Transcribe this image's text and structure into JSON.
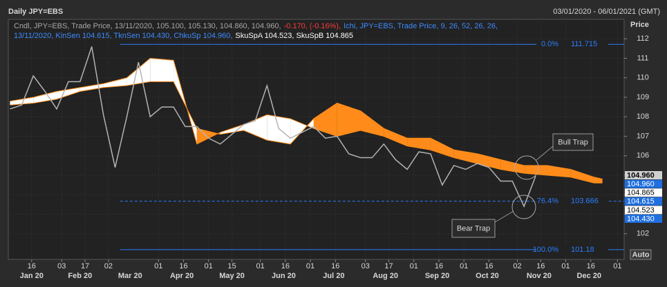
{
  "chart_data": {
    "type": "line",
    "title": "Daily JPY=EBS",
    "date_range": "03/01/2020 - 06/01/2021 (GMT)",
    "y_axis_label": "Price",
    "scale_button": "Auto",
    "legend_lines": [
      [
        {
          "text": "Cndl, JPY=EBS, Trade Price, 13/11/2020, 105.100, 105.130, 104.860, 104.960,",
          "color": "#a8a8a8"
        },
        {
          "text": "-0.170, (-0.16%),",
          "color": "#ff3b3b"
        },
        {
          "text": "Ichi, JPY=EBS, Trade Price,  9, 26, 52, 26, 26,",
          "color": "#3d8bff"
        }
      ],
      [
        {
          "text": "13/11/2020, KinSen 104.615, TknSen 104.430, ChkuSp 104.960,",
          "color": "#3d8bff"
        },
        {
          "text": "SkuSpA 104.523, SkuSpB 104.865",
          "color": "#ffffff"
        }
      ]
    ],
    "xlim": [
      "2020-01-02",
      "2021-01-05"
    ],
    "ylim": [
      100.68,
      113.0
    ],
    "yticks": [
      102,
      103,
      104,
      105,
      106,
      107,
      108,
      109,
      110,
      111,
      112
    ],
    "xticks": [
      {
        "value": "2020-01-16",
        "label": "16"
      },
      {
        "value": "2020-02-03",
        "label": "03"
      },
      {
        "value": "2020-02-17",
        "label": "17"
      },
      {
        "value": "2020-03-02",
        "label": "02"
      },
      {
        "value": "2020-04-01",
        "label": "01"
      },
      {
        "value": "2020-04-16",
        "label": "16"
      },
      {
        "value": "2020-05-01",
        "label": "01"
      },
      {
        "value": "2020-05-15",
        "label": "15"
      },
      {
        "value": "2020-06-01",
        "label": "01"
      },
      {
        "value": "2020-06-16",
        "label": "16"
      },
      {
        "value": "2020-07-01",
        "label": "01"
      },
      {
        "value": "2020-07-16",
        "label": "16"
      },
      {
        "value": "2020-08-03",
        "label": "03"
      },
      {
        "value": "2020-08-17",
        "label": "17"
      },
      {
        "value": "2020-09-01",
        "label": "01"
      },
      {
        "value": "2020-09-16",
        "label": "16"
      },
      {
        "value": "2020-10-01",
        "label": "01"
      },
      {
        "value": "2020-10-16",
        "label": "16"
      },
      {
        "value": "2020-11-02",
        "label": "02"
      },
      {
        "value": "2020-11-16",
        "label": "16"
      },
      {
        "value": "2020-12-01",
        "label": "01"
      },
      {
        "value": "2020-12-16",
        "label": "16"
      },
      {
        "value": "2021-01-01",
        "label": "01"
      }
    ],
    "month_labels": [
      {
        "value": "2020-01-16",
        "label": "Jan 20"
      },
      {
        "value": "2020-02-14",
        "label": "Feb 20"
      },
      {
        "value": "2020-03-15",
        "label": "Mar 20"
      },
      {
        "value": "2020-04-15",
        "label": "Apr 20"
      },
      {
        "value": "2020-05-15",
        "label": "May 20"
      },
      {
        "value": "2020-06-15",
        "label": "Jun 20"
      },
      {
        "value": "2020-07-15",
        "label": "Jul 20"
      },
      {
        "value": "2020-08-15",
        "label": "Aug 20"
      },
      {
        "value": "2020-09-15",
        "label": "Sep 20"
      },
      {
        "value": "2020-10-15",
        "label": "Oct 20"
      },
      {
        "value": "2020-11-15",
        "label": "Nov 20"
      },
      {
        "value": "2020-12-15",
        "label": "Dec 20"
      }
    ],
    "grid": true,
    "series": [
      {
        "color": "#b4b4b4",
        "x": [
          "2020-01-03",
          "2020-01-10",
          "2020-01-17",
          "2020-01-24",
          "2020-01-31",
          "2020-02-07",
          "2020-02-14",
          "2020-02-21",
          "2020-02-28",
          "2020-03-06",
          "2020-03-13",
          "2020-03-20",
          "2020-03-27",
          "2020-04-03",
          "2020-04-10",
          "2020-04-17",
          "2020-04-24",
          "2020-05-01",
          "2020-05-08",
          "2020-05-15",
          "2020-05-22",
          "2020-05-29",
          "2020-06-05",
          "2020-06-12",
          "2020-06-19",
          "2020-06-26",
          "2020-07-03",
          "2020-07-10",
          "2020-07-17",
          "2020-07-24",
          "2020-07-31",
          "2020-08-07",
          "2020-08-14",
          "2020-08-21",
          "2020-08-28",
          "2020-09-04",
          "2020-09-11",
          "2020-09-18",
          "2020-09-25",
          "2020-10-02",
          "2020-10-09",
          "2020-10-16",
          "2020-10-23",
          "2020-10-30",
          "2020-11-06",
          "2020-11-13"
        ],
        "values": [
          108.4,
          108.6,
          110.1,
          109.3,
          108.4,
          109.8,
          109.8,
          111.6,
          108.1,
          105.4,
          108.0,
          110.8,
          108.0,
          108.5,
          108.5,
          107.5,
          107.5,
          106.9,
          106.6,
          107.1,
          107.6,
          107.8,
          109.6,
          107.4,
          106.9,
          107.2,
          107.5,
          106.9,
          107.0,
          106.1,
          105.9,
          105.9,
          106.6,
          105.8,
          105.3,
          106.2,
          106.1,
          104.5,
          105.5,
          105.3,
          105.6,
          105.4,
          104.7,
          104.7,
          103.4,
          104.96
        ]
      }
    ],
    "cloud": {
      "up_color": "#ffffff",
      "down_color": "#ff8c1a",
      "x": [
        "2020-01-03",
        "2020-01-17",
        "2020-01-31",
        "2020-02-14",
        "2020-02-28",
        "2020-03-13",
        "2020-03-27",
        "2020-04-10",
        "2020-04-24",
        "2020-05-08",
        "2020-05-22",
        "2020-06-05",
        "2020-06-19",
        "2020-07-03",
        "2020-07-17",
        "2020-07-31",
        "2020-08-14",
        "2020-08-28",
        "2020-09-11",
        "2020-09-25",
        "2020-10-09",
        "2020-10-23",
        "2020-11-06",
        "2020-11-20",
        "2020-12-04",
        "2020-12-18",
        "2020-12-23"
      ],
      "span_a": [
        108.8,
        109.0,
        109.3,
        109.5,
        109.7,
        110.0,
        111.0,
        110.9,
        106.6,
        107.2,
        107.6,
        108.1,
        107.9,
        107.4,
        107.0,
        107.3,
        107.0,
        106.5,
        106.3,
        105.9,
        105.6,
        105.3,
        105.1,
        105.0,
        104.9,
        104.6,
        104.6
      ],
      "span_b": [
        108.6,
        108.7,
        108.9,
        109.3,
        109.5,
        109.6,
        109.8,
        109.8,
        107.4,
        107.1,
        107.3,
        106.8,
        106.6,
        107.9,
        108.7,
        108.3,
        107.4,
        106.9,
        106.9,
        106.3,
        106.1,
        105.8,
        105.5,
        105.5,
        105.3,
        104.9,
        104.8
      ]
    },
    "fib_levels": [
      {
        "from": "2020-03-09",
        "pct": "0.0%",
        "value": 111.715
      },
      {
        "from": "2020-03-09",
        "pct": "76.4%",
        "value": 103.666
      },
      {
        "from": "2020-03-09",
        "pct": "100.0%",
        "value": 101.18
      }
    ],
    "fib_color": "#2a7fff",
    "last_labels": [
      {
        "value": 104.96,
        "label": "104.960",
        "bg": "#d0d0d0",
        "fg": "#000000"
      },
      {
        "value": 104.96,
        "label": "104.960",
        "bg": "#1f6fe0",
        "fg": "#ffffff"
      },
      {
        "value": 104.865,
        "label": "104.865",
        "bg": "#ffffff",
        "fg": "#000000"
      },
      {
        "value": 104.615,
        "label": "104.615",
        "bg": "#1f6fe0",
        "fg": "#ffffff"
      },
      {
        "value": 104.523,
        "label": "104.523",
        "bg": "#ffffff",
        "fg": "#000000"
      },
      {
        "value": 104.43,
        "label": "104.430",
        "bg": "#1f6fe0",
        "fg": "#ffffff"
      }
    ],
    "annotations": [
      "Bull Trap",
      "Bear Trap"
    ]
  }
}
